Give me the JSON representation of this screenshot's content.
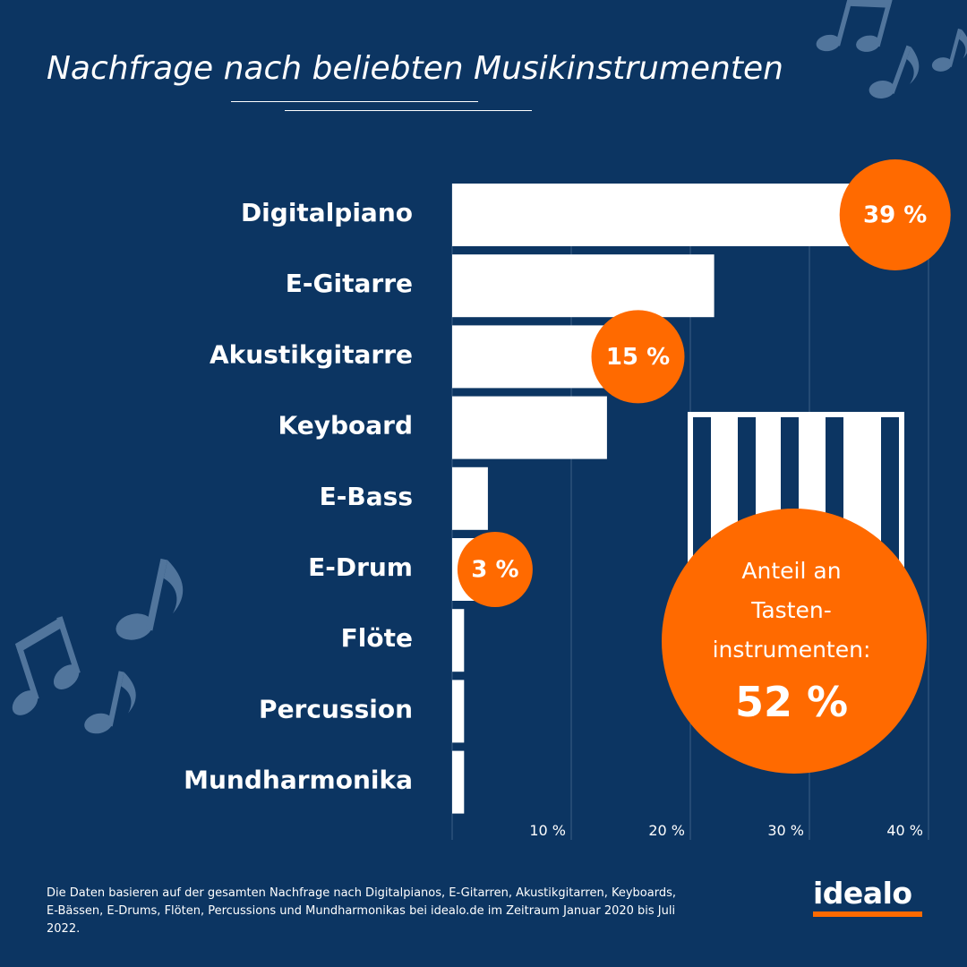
{
  "title": "Nachfrage nach beliebten Musikinstrumenten",
  "footnote": "Die Daten basieren auf der gesamten Nachfrage nach Digitalpianos, E-Gitarren, Akustikgitarren, Keyboards, E-Bässen, E-Drums, Flöten, Percussions und Mundharmonikas bei idealo.de im Zeitraum Januar 2020 bis Juli 2022.",
  "logo": {
    "text": "idealo"
  },
  "colors": {
    "background": "#0c3562",
    "bar": "#ffffff",
    "accent": "#ff6a00",
    "note": "#5a7da3"
  },
  "icons": [
    "music-note-icon",
    "piano-keys-icon"
  ],
  "chart_data": {
    "type": "bar",
    "orientation": "horizontal",
    "categories": [
      "Digitalpiano",
      "E-Gitarre",
      "Akustikgitarre",
      "Keyboard",
      "E-Bass",
      "E-Drum",
      "Flöte",
      "Percussion",
      "Mundharmonika"
    ],
    "values": [
      39,
      22,
      15,
      13,
      3,
      3,
      1,
      1,
      1
    ],
    "xlim": [
      0,
      40
    ],
    "xticks": [
      10,
      20,
      30,
      40
    ],
    "xtick_labels": [
      "10 %",
      "20 %",
      "30 %",
      "40 %"
    ],
    "grid": true,
    "annotations": [
      {
        "category": "Digitalpiano",
        "label": "39 %"
      },
      {
        "category": "Akustikgitarre",
        "label": "15 %"
      },
      {
        "category": "E-Drum",
        "label": "3 %"
      }
    ]
  },
  "highlight": {
    "lines": [
      "Anteil an",
      "Tasten-",
      "instrumenten:"
    ],
    "value": "52 %"
  }
}
